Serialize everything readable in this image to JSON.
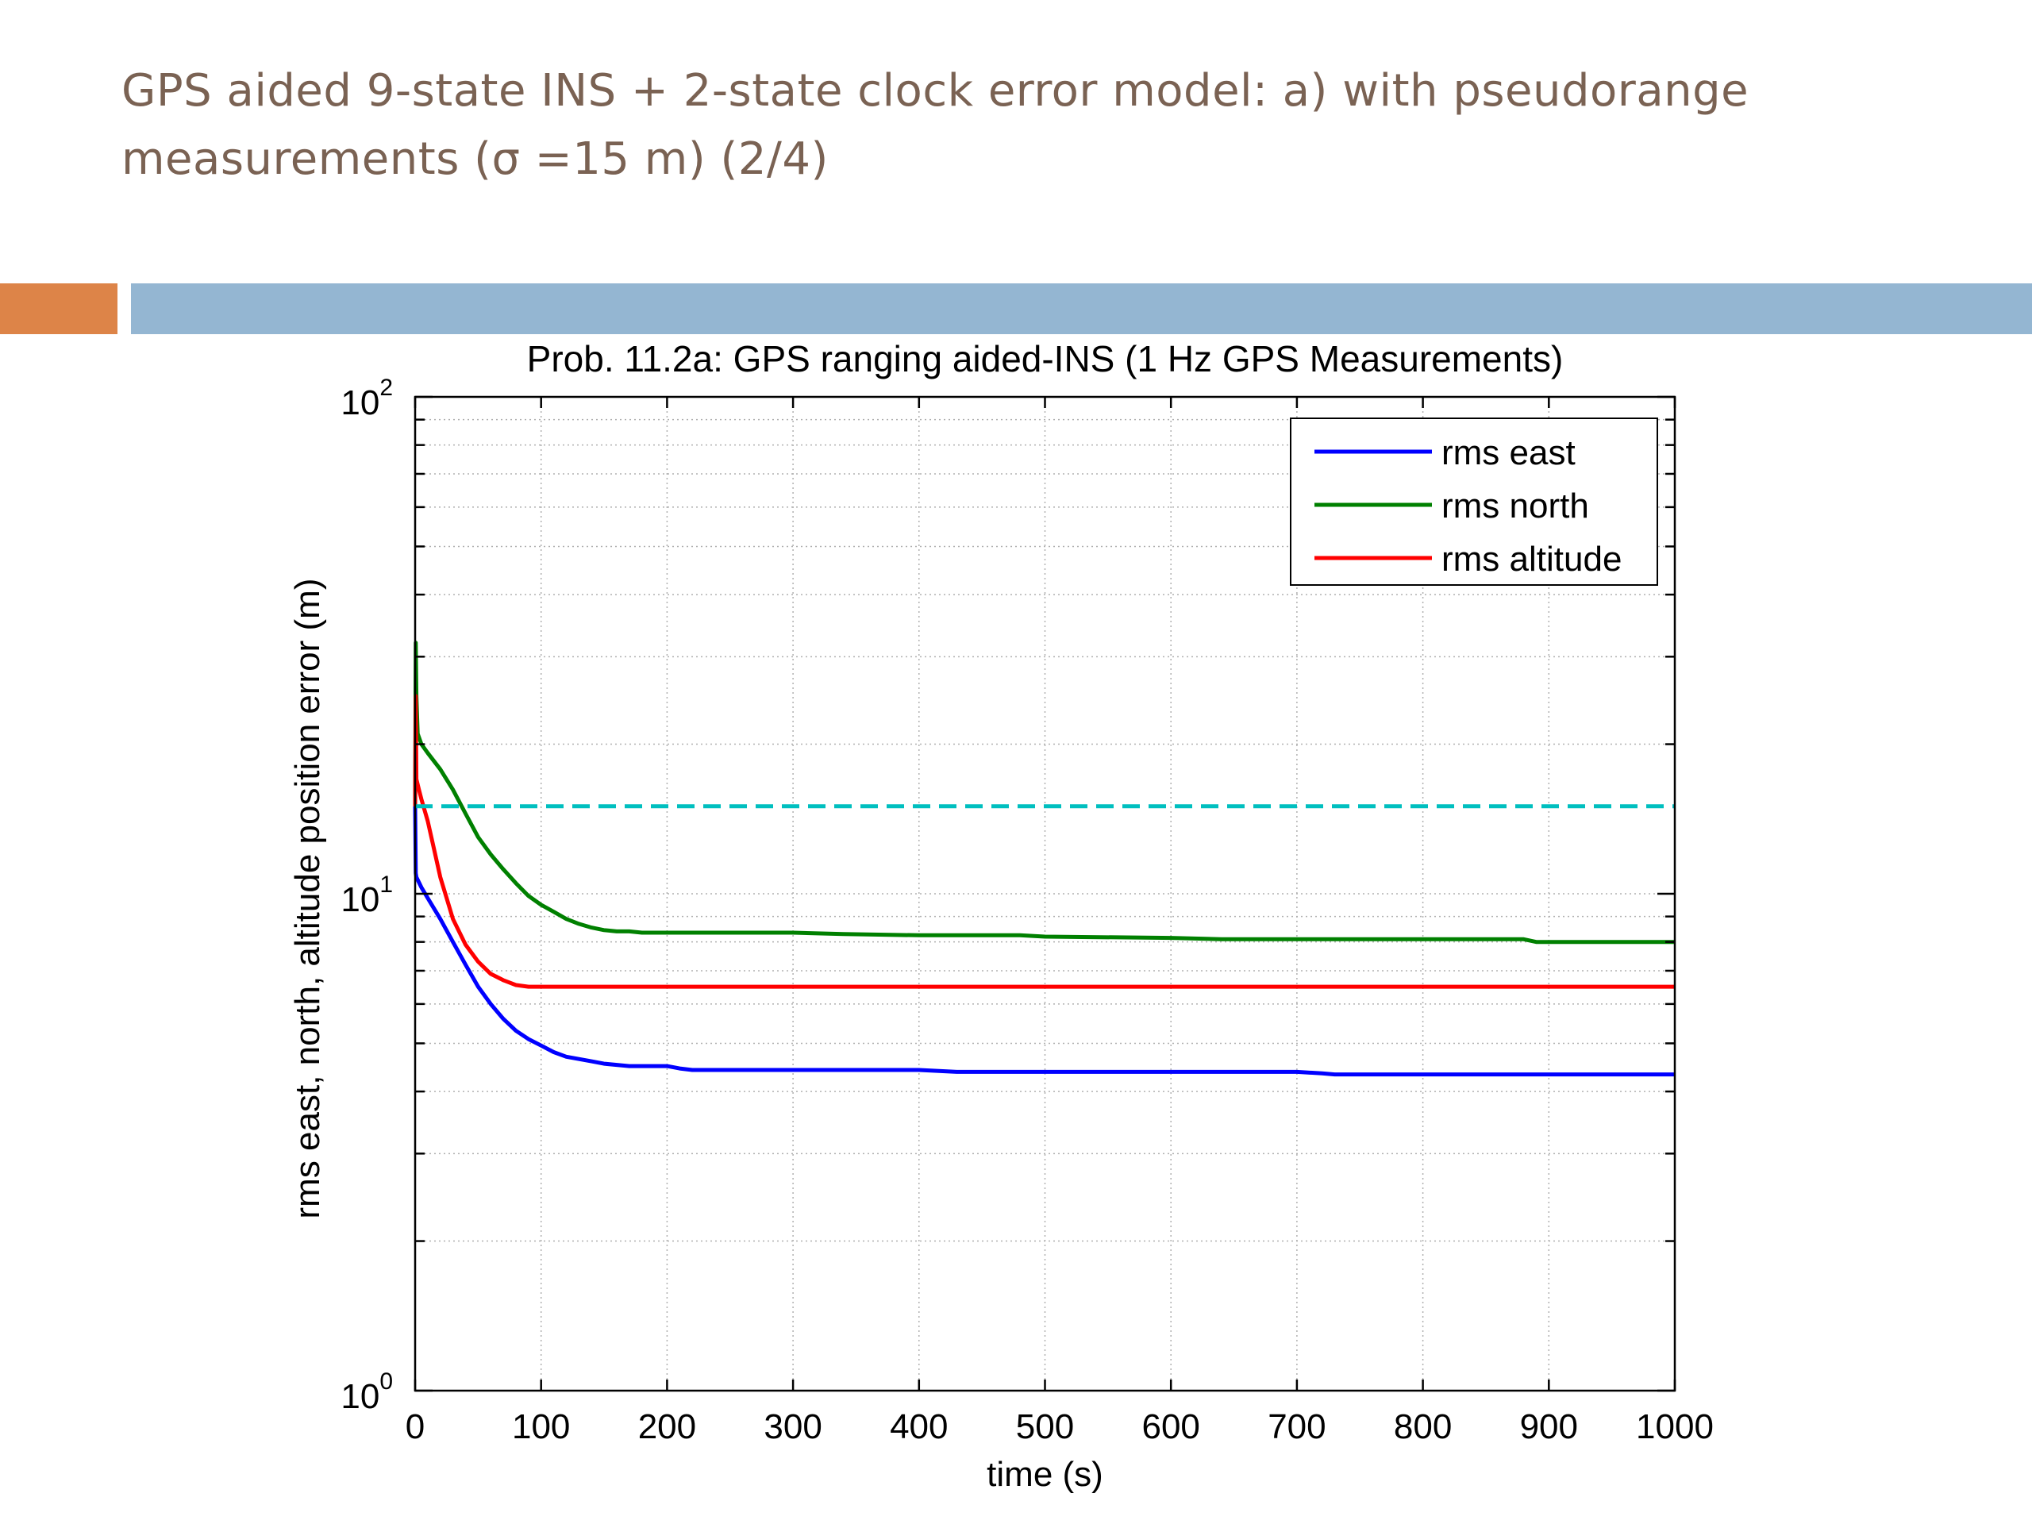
{
  "slide": {
    "title_line1": "GPS aided 9-state INS + 2-state clock error model: a) with pseudorange",
    "title_line2": "measurements (σ =15 m) (2/4)",
    "accent_colors": {
      "orange": "#dd8448",
      "blue": "#94b6d2"
    }
  },
  "chart_data": {
    "type": "line",
    "title": "Prob. 11.2a: GPS ranging aided-INS (1 Hz GPS Measurements)",
    "xlabel": "time (s)",
    "ylabel": "rms east, north, altitude position error (m)",
    "xlim": [
      0,
      1000
    ],
    "ylim": [
      1,
      100
    ],
    "yscale": "log",
    "xticks": [
      0,
      100,
      200,
      300,
      400,
      500,
      600,
      700,
      800,
      900,
      1000
    ],
    "xtick_labels": [
      "0",
      "100",
      "200",
      "300",
      "400",
      "500",
      "600",
      "700",
      "800",
      "900",
      "1000"
    ],
    "yticks": [
      1,
      10,
      100
    ],
    "ytick_labels": [
      {
        "base": "10",
        "exp": "0"
      },
      {
        "base": "10",
        "exp": "1"
      },
      {
        "base": "10",
        "exp": "2"
      }
    ],
    "grid": true,
    "legend_position": "top-right",
    "series": [
      {
        "name": "rms east",
        "color": "#0000ff",
        "x": [
          0,
          0.5,
          1,
          5,
          10,
          20,
          30,
          40,
          50,
          60,
          70,
          80,
          90,
          100,
          110,
          120,
          130,
          140,
          150,
          170,
          200,
          210,
          220,
          300,
          400,
          430,
          500,
          600,
          700,
          720,
          730,
          800,
          900,
          1000
        ],
        "y": [
          15,
          11,
          10.8,
          10.3,
          9.8,
          8.9,
          8.0,
          7.2,
          6.5,
          6.0,
          5.6,
          5.3,
          5.1,
          4.95,
          4.8,
          4.7,
          4.65,
          4.6,
          4.55,
          4.5,
          4.5,
          4.45,
          4.42,
          4.42,
          4.42,
          4.38,
          4.38,
          4.38,
          4.38,
          4.35,
          4.33,
          4.33,
          4.33,
          4.33
        ]
      },
      {
        "name": "rms north",
        "color": "#008000",
        "x": [
          0,
          0.5,
          1,
          2,
          5,
          10,
          20,
          30,
          40,
          50,
          60,
          70,
          80,
          90,
          100,
          110,
          120,
          130,
          140,
          150,
          160,
          170,
          180,
          200,
          300,
          340,
          400,
          480,
          500,
          600,
          640,
          700,
          800,
          880,
          890,
          1000
        ],
        "y": [
          15,
          32,
          25,
          21,
          20,
          19.2,
          17.8,
          16.2,
          14.5,
          13.0,
          12.0,
          11.2,
          10.5,
          9.9,
          9.5,
          9.2,
          8.9,
          8.7,
          8.55,
          8.45,
          8.4,
          8.4,
          8.35,
          8.35,
          8.35,
          8.3,
          8.25,
          8.25,
          8.2,
          8.15,
          8.1,
          8.1,
          8.1,
          8.1,
          8.0,
          8.0
        ]
      },
      {
        "name": "rms altitude",
        "color": "#ff0000",
        "x": [
          0,
          0.5,
          1,
          3,
          5,
          10,
          15,
          20,
          25,
          30,
          40,
          50,
          60,
          70,
          80,
          90,
          100,
          200,
          300,
          400,
          500,
          600,
          700,
          800,
          900,
          1000
        ],
        "y": [
          15,
          25,
          17,
          16.2,
          15.5,
          14.0,
          12.3,
          10.8,
          9.8,
          8.9,
          7.9,
          7.3,
          6.9,
          6.7,
          6.55,
          6.5,
          6.5,
          6.5,
          6.5,
          6.5,
          6.5,
          6.5,
          6.5,
          6.5,
          6.5,
          6.5
        ]
      },
      {
        "name": "",
        "color": "#00bfbf",
        "dashed": true,
        "x": [
          0,
          1000
        ],
        "y": [
          15,
          15
        ]
      }
    ]
  }
}
